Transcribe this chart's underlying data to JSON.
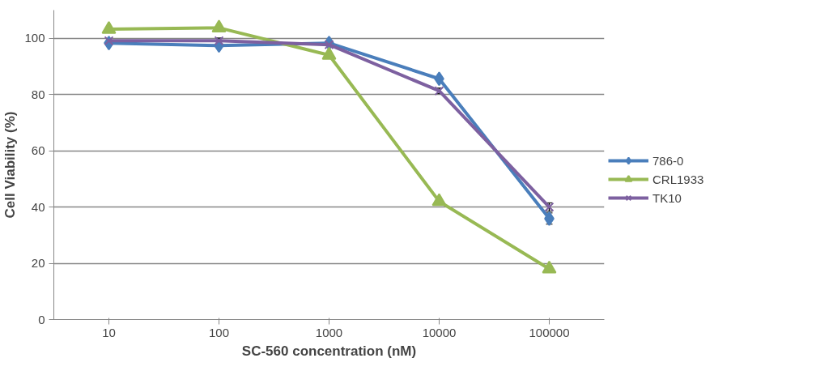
{
  "chart_data": {
    "type": "line",
    "xlabel": "SC-560 concentration (nM)",
    "ylabel": "Cell Viability (%)",
    "categories": [
      "10",
      "100",
      "1000",
      "10000",
      "100000"
    ],
    "ylim": [
      0,
      110
    ],
    "yticks": [
      0,
      20,
      40,
      60,
      80,
      100
    ],
    "grid": "y",
    "legend": "right",
    "series": [
      {
        "name": "786-0",
        "color": "#4a7ebb",
        "marker": "diamond",
        "values": [
          98.3,
          97.4,
          98.3,
          85.6,
          35.9
        ],
        "errors": [
          null,
          null,
          null,
          null,
          2
        ]
      },
      {
        "name": "CRL1933",
        "color": "#98b954",
        "marker": "triangle",
        "values": [
          103.2,
          103.7,
          94,
          42,
          18
        ],
        "errors": [
          null,
          null,
          null,
          null,
          null
        ]
      },
      {
        "name": "TK10",
        "color": "#7d60a0",
        "marker": "cross",
        "values": [
          99.1,
          99.1,
          97.7,
          81.3,
          40
        ],
        "errors": [
          null,
          1,
          null,
          1,
          1.5
        ]
      }
    ]
  }
}
